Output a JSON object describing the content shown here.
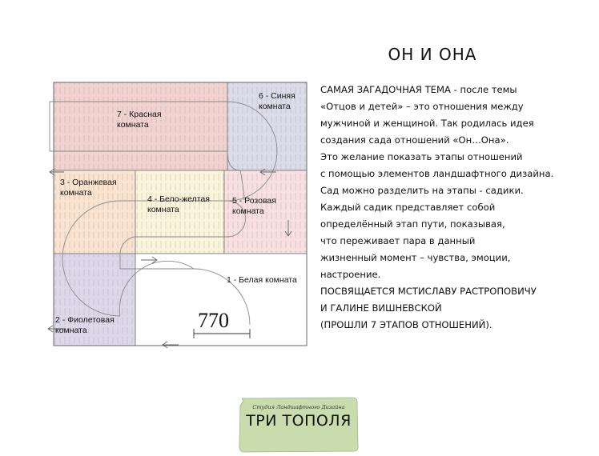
{
  "title": "ОН И ОНА",
  "description": [
    "САМАЯ ЗАГАДОЧНАЯ ТЕМА - после темы",
    "«Отцов и детей» – это отношения между",
    "мужчиной и женщиной. Так родилась идея",
    "создания сада отношений «Он…Она».",
    "Это желание показать этапы отношений",
    "с помощью элементов ландшафтного дизайна.",
    "Сад можно разделить на этапы - садики.",
    "Каждый садик представляет собой",
    "определённый этап пути, показывая,",
    "что переживает пара в данный",
    "жизненный момент – чувства, эмоции,",
    "настроение.",
    "ПОСВЯЩАЕТСЯ МСТИСЛАВУ РАСТРОПОВИЧУ",
    "И ГАЛИНЕ ВИШНЕВСКОЙ",
    "(ПРОШЛИ 7 ЭТАПОВ ОТНОШЕНИЙ)."
  ],
  "rooms": {
    "r1": [
      "1 -  Белая комната"
    ],
    "r2": [
      "2 -  Фиолетовая",
      "комната"
    ],
    "r3": [
      "3 -  Оранжевая",
      "комната"
    ],
    "r4": [
      "4 -  Бело-желтая",
      "комната"
    ],
    "r5": [
      "5 -  Розовая",
      "комната"
    ],
    "r6": [
      "6 -  Синяя",
      "комната"
    ],
    "r7": [
      "7 -  Красная",
      "комната"
    ]
  },
  "dimension": "770",
  "logo": {
    "subtitle": "Студия Ландшафтного Дизайна",
    "name": "ТРИ ТОПОЛЯ"
  },
  "colors": {
    "red": "#f1d2cf",
    "blue": "#dcdbea",
    "orange": "#fae3cf",
    "yellow": "#faf5da",
    "pink": "#f8dfe0",
    "violet": "#dcd8ea",
    "logo_green": "#c8dcae"
  }
}
